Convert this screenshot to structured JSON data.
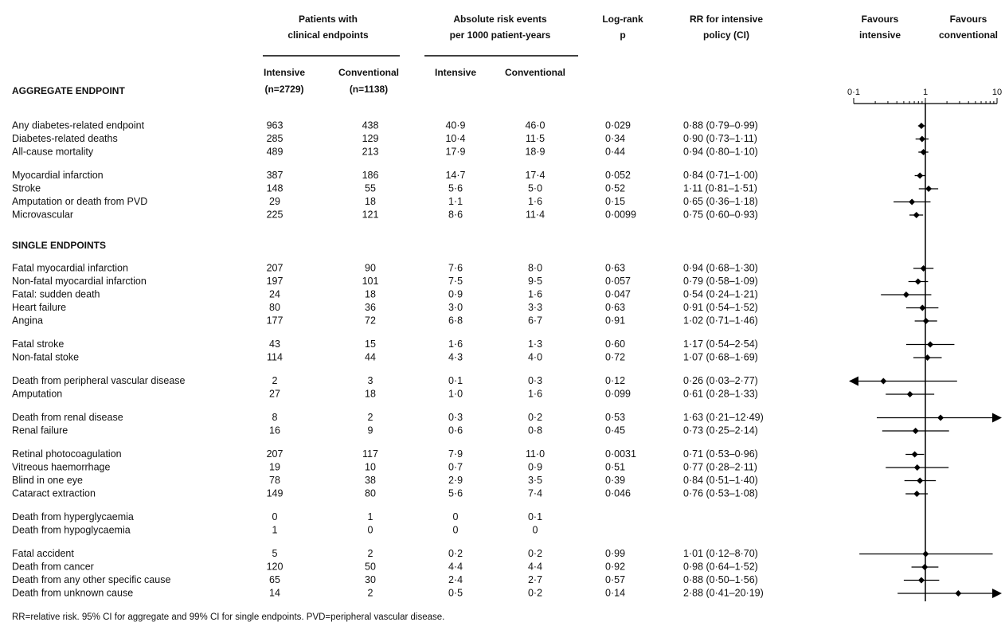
{
  "header": {
    "patients": [
      "Patients with",
      "clinical endpoints"
    ],
    "rates": [
      "Absolute risk events",
      "per 1000 patient-years"
    ],
    "logrank": [
      "Log-rank",
      "p"
    ],
    "rr": [
      "RR for intensive",
      "policy (CI)"
    ],
    "favours_left": [
      "Favours",
      "intensive"
    ],
    "favours_right": [
      "Favours",
      "conventional"
    ],
    "intensive": "Intensive",
    "conventional": "Conventional",
    "n_intensive": "(n=2729)",
    "n_conventional": "(n=1138)",
    "rate_intensive": "Intensive",
    "rate_conventional": "Conventional"
  },
  "sections": [
    {
      "title": "AGGREGATE ENDPOINT",
      "groups": [
        [
          [
            "Any diabetes-related endpoint",
            963,
            438,
            "40·9",
            "46·0",
            "0·029",
            "0·88 (0·79–0·99)"
          ],
          [
            "Diabetes-related deaths",
            285,
            129,
            "10·4",
            "11·5",
            "0·34",
            "0·90 (0·73–1·11)"
          ],
          [
            "All-cause mortality",
            489,
            213,
            "17·9",
            "18·9",
            "0·44",
            "0·94 (0·80–1·10)"
          ]
        ],
        [
          [
            "Myocardial infarction",
            387,
            186,
            "14·7",
            "17·4",
            "0·052",
            "0·84 (0·71–1·00)"
          ],
          [
            "Stroke",
            148,
            55,
            "5·6",
            "5·0",
            "0·52",
            "1·11 (0·81–1·51)"
          ],
          [
            "Amputation or death from PVD",
            29,
            18,
            "1·1",
            "1·6",
            "0·15",
            "0·65 (0·36–1·18)"
          ],
          [
            "Microvascular",
            225,
            121,
            "8·6",
            "11·4",
            "0·0099",
            "0·75 (0·60–0·93)"
          ]
        ]
      ]
    },
    {
      "title": "SINGLE ENDPOINTS",
      "groups": [
        [
          [
            "Fatal myocardial infarction",
            207,
            90,
            "7·6",
            "8·0",
            "0·63",
            "0·94 (0·68–1·30)"
          ],
          [
            "Non-fatal myocardial infarction",
            197,
            101,
            "7·5",
            "9·5",
            "0·057",
            "0·79 (0·58–1·09)"
          ],
          [
            "Fatal: sudden death",
            24,
            18,
            "0·9",
            "1·6",
            "0·047",
            "0·54 (0·24–1·21)"
          ],
          [
            "Heart failure",
            80,
            36,
            "3·0",
            "3·3",
            "0·63",
            "0·91 (0·54–1·52)"
          ],
          [
            "Angina",
            177,
            72,
            "6·8",
            "6·7",
            "0·91",
            "1·02 (0·71–1·46)"
          ]
        ],
        [
          [
            "Fatal stroke",
            43,
            15,
            "1·6",
            "1·3",
            "0·60",
            "1·17 (0·54–2·54)"
          ],
          [
            "Non-fatal stoke",
            114,
            44,
            "4·3",
            "4·0",
            "0·72",
            "1·07 (0·68–1·69)"
          ]
        ],
        [
          [
            "Death from peripheral vascular disease",
            2,
            3,
            "0·1",
            "0·3",
            "0·12",
            "0·26 (0·03–2·77)"
          ],
          [
            "Amputation",
            27,
            18,
            "1·0",
            "1·6",
            "0·099",
            "0·61 (0·28–1·33)"
          ]
        ],
        [
          [
            "Death from renal disease",
            8,
            2,
            "0·3",
            "0·2",
            "0·53",
            "1·63 (0·21–12·49)"
          ],
          [
            "Renal failure",
            16,
            9,
            "0·6",
            "0·8",
            "0·45",
            "0·73 (0·25–2·14)"
          ]
        ],
        [
          [
            "Retinal photocoagulation",
            207,
            117,
            "7·9",
            "11·0",
            "0·0031",
            "0·71 (0·53–0·96)"
          ],
          [
            "Vitreous haemorrhage",
            19,
            10,
            "0·7",
            "0·9",
            "0·51",
            "0·77 (0·28–2·11)"
          ],
          [
            "Blind in one eye",
            78,
            38,
            "2·9",
            "3·5",
            "0·39",
            "0·84 (0·51–1·40)"
          ],
          [
            "Cataract extraction",
            149,
            80,
            "5·6",
            "7·4",
            "0·046",
            "0·76 (0·53–1·08)"
          ]
        ],
        [
          [
            "Death from hyperglycaemia",
            0,
            1,
            "0",
            "0·1",
            null,
            null
          ],
          [
            "Death from hypoglycaemia",
            1,
            0,
            "0",
            "0",
            null,
            null
          ]
        ],
        [
          [
            "Fatal accident",
            5,
            2,
            "0·2",
            "0·2",
            "0·99",
            "1·01 (0·12–8·70)"
          ],
          [
            "Death from cancer",
            120,
            50,
            "4·4",
            "4·4",
            "0·92",
            "0·98 (0·64–1·52)"
          ],
          [
            "Death from any other specific cause",
            65,
            30,
            "2·4",
            "2·7",
            "0·57",
            "0·88 (0·50–1·56)"
          ],
          [
            "Death from unknown cause",
            14,
            2,
            "0·5",
            "0·2",
            "0·14",
            "2·88 (0·41–20·19)"
          ]
        ]
      ]
    }
  ],
  "footnote": "RR=relative risk. 95% CI for aggregate and 99% CI for single endpoints. PVD=peripheral vascular disease.",
  "chart_data": {
    "type": "forest",
    "log_scale": true,
    "color": "#000000",
    "xlim": [
      0.1,
      10
    ],
    "xticks": [
      {
        "value": 0.1,
        "label": "0·1"
      },
      1,
      10
    ],
    "reference_line": 1,
    "values": [
      0.88,
      0.9,
      0.94,
      0.84,
      1.11,
      0.65,
      0.75,
      0.94,
      0.79,
      0.54,
      0.91,
      1.02,
      1.17,
      1.07,
      0.26,
      0.61,
      1.63,
      0.73,
      0.71,
      0.77,
      0.84,
      0.76,
      null,
      null,
      1.01,
      0.98,
      0.88,
      2.88
    ],
    "lower": [
      0.79,
      0.73,
      0.8,
      0.71,
      0.81,
      0.36,
      0.6,
      0.68,
      0.58,
      0.24,
      0.54,
      0.71,
      0.54,
      0.68,
      0.03,
      0.28,
      0.21,
      0.25,
      0.53,
      0.28,
      0.51,
      0.53,
      null,
      null,
      0.12,
      0.64,
      0.5,
      0.41
    ],
    "upper": [
      0.99,
      1.11,
      1.1,
      1.0,
      1.51,
      1.18,
      0.93,
      1.3,
      1.09,
      1.21,
      1.52,
      1.46,
      2.54,
      1.69,
      2.77,
      1.33,
      12.49,
      2.14,
      0.96,
      2.11,
      1.4,
      1.08,
      null,
      null,
      8.7,
      1.52,
      1.56,
      20.19
    ]
  }
}
